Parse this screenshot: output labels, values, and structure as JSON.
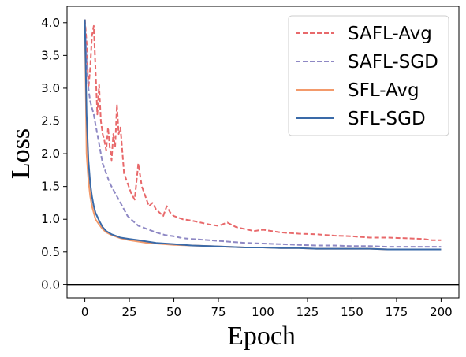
{
  "chart_data": {
    "type": "line",
    "title": "",
    "xlabel": "Epoch",
    "ylabel": "Loss",
    "xlim": [
      -10,
      210
    ],
    "ylim": [
      -0.2,
      4.25
    ],
    "xticks": [
      0,
      25,
      50,
      75,
      100,
      125,
      150,
      175,
      200
    ],
    "yticks": [
      0.0,
      0.5,
      1.0,
      1.5,
      2.0,
      2.5,
      3.0,
      3.5,
      4.0
    ],
    "x_tick_labels": [
      "0",
      "25",
      "50",
      "75",
      "100",
      "125",
      "150",
      "175",
      "200"
    ],
    "y_tick_labels": [
      "0.0",
      "0.5",
      "1.0",
      "1.5",
      "2.0",
      "2.5",
      "3.0",
      "3.5",
      "4.0"
    ],
    "hline": 0.0,
    "legend_position": "top-right",
    "series": [
      {
        "name": "SAFL-Avg",
        "color": "#e8696b",
        "style": "dashed",
        "x": [
          0,
          1,
          2,
          3,
          4,
          5,
          6,
          7,
          8,
          9,
          10,
          11,
          12,
          13,
          14,
          15,
          16,
          17,
          18,
          19,
          20,
          22,
          24,
          26,
          28,
          30,
          32,
          34,
          36,
          38,
          40,
          42,
          44,
          46,
          48,
          50,
          55,
          60,
          65,
          70,
          75,
          80,
          85,
          90,
          95,
          100,
          110,
          120,
          130,
          140,
          150,
          160,
          170,
          180,
          190,
          195,
          200
        ],
        "y": [
          4.05,
          3.7,
          3.0,
          3.3,
          3.8,
          3.95,
          3.3,
          2.6,
          3.05,
          2.5,
          2.3,
          2.2,
          2.05,
          2.4,
          2.1,
          1.9,
          2.3,
          2.1,
          2.75,
          2.3,
          2.4,
          1.7,
          1.55,
          1.4,
          1.3,
          1.85,
          1.5,
          1.35,
          1.2,
          1.25,
          1.15,
          1.1,
          1.05,
          1.2,
          1.1,
          1.05,
          1.0,
          0.98,
          0.95,
          0.92,
          0.9,
          0.95,
          0.88,
          0.85,
          0.82,
          0.84,
          0.8,
          0.78,
          0.77,
          0.75,
          0.74,
          0.72,
          0.72,
          0.71,
          0.7,
          0.68,
          0.68
        ]
      },
      {
        "name": "SAFL-SGD",
        "color": "#8e88c4",
        "style": "dashed",
        "x": [
          0,
          1,
          2,
          3,
          4,
          5,
          6,
          7,
          8,
          9,
          10,
          12,
          14,
          16,
          18,
          20,
          22,
          24,
          26,
          28,
          30,
          35,
          40,
          45,
          50,
          55,
          60,
          70,
          80,
          90,
          100,
          110,
          120,
          130,
          140,
          150,
          160,
          170,
          180,
          190,
          200
        ],
        "y": [
          4.0,
          3.4,
          3.0,
          2.8,
          2.7,
          2.6,
          2.45,
          2.3,
          2.15,
          2.0,
          1.85,
          1.7,
          1.55,
          1.45,
          1.35,
          1.25,
          1.15,
          1.05,
          1.0,
          0.95,
          0.9,
          0.85,
          0.8,
          0.76,
          0.74,
          0.71,
          0.7,
          0.68,
          0.66,
          0.64,
          0.63,
          0.62,
          0.61,
          0.6,
          0.6,
          0.59,
          0.59,
          0.58,
          0.58,
          0.58,
          0.58
        ]
      },
      {
        "name": "SFL-Avg",
        "color": "#f39a6b",
        "style": "solid",
        "x": [
          0,
          1,
          2,
          3,
          4,
          5,
          6,
          8,
          10,
          12,
          15,
          18,
          20,
          25,
          30,
          35,
          40,
          50,
          60,
          70,
          80,
          90,
          100,
          110,
          120,
          130,
          140,
          150,
          160,
          170,
          180,
          190,
          200
        ],
        "y": [
          4.05,
          2.0,
          1.6,
          1.35,
          1.2,
          1.1,
          1.0,
          0.92,
          0.85,
          0.8,
          0.76,
          0.73,
          0.71,
          0.68,
          0.66,
          0.64,
          0.63,
          0.61,
          0.6,
          0.59,
          0.58,
          0.57,
          0.57,
          0.56,
          0.56,
          0.55,
          0.55,
          0.55,
          0.55,
          0.54,
          0.54,
          0.54,
          0.54
        ]
      },
      {
        "name": "SFL-SGD",
        "color": "#3a6aa8",
        "style": "solid",
        "x": [
          0,
          1,
          2,
          3,
          4,
          5,
          6,
          8,
          10,
          12,
          15,
          18,
          20,
          25,
          30,
          35,
          40,
          50,
          60,
          70,
          80,
          90,
          100,
          110,
          120,
          130,
          140,
          150,
          160,
          170,
          180,
          190,
          200
        ],
        "y": [
          4.05,
          2.6,
          1.9,
          1.55,
          1.35,
          1.2,
          1.1,
          0.98,
          0.88,
          0.82,
          0.77,
          0.74,
          0.72,
          0.7,
          0.68,
          0.66,
          0.64,
          0.62,
          0.6,
          0.59,
          0.58,
          0.57,
          0.57,
          0.56,
          0.56,
          0.55,
          0.55,
          0.55,
          0.55,
          0.54,
          0.54,
          0.54,
          0.54
        ]
      }
    ]
  }
}
